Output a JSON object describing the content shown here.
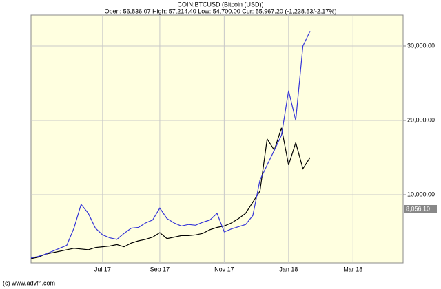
{
  "chart_data": {
    "type": "line",
    "title": "COIN:BTCUSD (Bitcoin (USD))",
    "subtitle": "Open: 56,836.07 High: 57,214.40 Low: 54,700.00 Cur: 55,967.20 (-1,238.53/-2.17%)",
    "footer": "(c) www.advfn.com",
    "categories": [
      null,
      null,
      null,
      null,
      null,
      null,
      null,
      null,
      null,
      null,
      "Jul 17",
      null,
      null,
      null,
      null,
      null,
      null,
      null,
      "Sep 17",
      null,
      null,
      null,
      null,
      null,
      null,
      null,
      null,
      "Nov 17",
      null,
      null,
      null,
      null,
      null,
      null,
      null,
      null,
      "Jan 18",
      null,
      null,
      null,
      null,
      null,
      null,
      null,
      null,
      "Mar 18",
      null,
      null,
      null,
      null,
      null,
      null,
      null
    ],
    "series": [
      {
        "color": "#000000",
        "values": [
          1400,
          1600,
          2000,
          2200,
          2400,
          2600,
          2800,
          2700,
          2600,
          2900,
          3000,
          3100,
          3300,
          3000,
          3500,
          3800,
          4000,
          4300,
          4900,
          4100,
          4300,
          4500,
          4500,
          4600,
          4800,
          5300,
          5600,
          5800,
          6200,
          6800,
          7500,
          9000,
          10500,
          17500,
          16000,
          19000,
          14000,
          17000,
          13500,
          15000,
          null,
          null,
          null,
          null,
          null,
          null,
          null,
          null,
          null,
          null,
          null,
          null,
          null
        ]
      },
      {
        "color": "#3535d8",
        "values": [
          1500,
          1700,
          2000,
          2400,
          2800,
          3200,
          5500,
          8700,
          7500,
          5500,
          4600,
          4200,
          4000,
          4800,
          5500,
          5600,
          6200,
          6600,
          8200,
          6800,
          6200,
          5800,
          6000,
          5900,
          6300,
          6600,
          7500,
          5000,
          5400,
          5700,
          6000,
          7200,
          12000,
          14000,
          16000,
          18000,
          24000,
          20000,
          30000,
          32000,
          null,
          null,
          null,
          null,
          null,
          null,
          null,
          null,
          null,
          null,
          null,
          null,
          null
        ]
      }
    ],
    "ylim": [
      833,
      34167
    ],
    "yticks": [
      {
        "value": 10000,
        "label": "10,000.00"
      },
      {
        "value": 20000,
        "label": "20,000.00"
      },
      {
        "value": 30000,
        "label": "30,000.00"
      }
    ],
    "last_value": {
      "value": 8056.1,
      "label": "8,056.10"
    },
    "grid": true
  }
}
